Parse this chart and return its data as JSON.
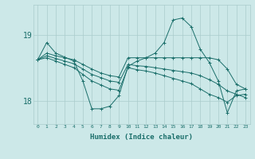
{
  "xlabel": "Humidex (Indice chaleur)",
  "bg_color": "#cce8e8",
  "grid_color": "#aacccc",
  "line_color": "#1a6e6a",
  "xlim": [
    -0.5,
    23.5
  ],
  "ylim": [
    17.65,
    19.45
  ],
  "yticks": [
    18,
    19
  ],
  "xticks": [
    0,
    1,
    2,
    3,
    4,
    5,
    6,
    7,
    8,
    9,
    10,
    11,
    12,
    13,
    14,
    15,
    16,
    17,
    18,
    19,
    20,
    21,
    22,
    23
  ],
  "series": [
    {
      "x": [
        0,
        1,
        2,
        3,
        4,
        5,
        6,
        7,
        8,
        9,
        10,
        11,
        12,
        13,
        14,
        15,
        16,
        17,
        18,
        19,
        20,
        21,
        22,
        23
      ],
      "y": [
        18.62,
        18.88,
        18.72,
        18.66,
        18.6,
        18.3,
        17.88,
        17.88,
        17.92,
        18.08,
        18.52,
        18.6,
        18.65,
        18.72,
        18.88,
        19.22,
        19.25,
        19.12,
        18.78,
        18.58,
        18.3,
        17.82,
        18.15,
        18.18
      ]
    },
    {
      "x": [
        0,
        1,
        2,
        3,
        4,
        5,
        6,
        7,
        8,
        9,
        10,
        11,
        12,
        13,
        14,
        15,
        16,
        17,
        18,
        19,
        20,
        21,
        22,
        23
      ],
      "y": [
        18.62,
        18.72,
        18.68,
        18.65,
        18.62,
        18.55,
        18.48,
        18.42,
        18.38,
        18.36,
        18.65,
        18.65,
        18.65,
        18.65,
        18.65,
        18.65,
        18.65,
        18.65,
        18.65,
        18.65,
        18.62,
        18.48,
        18.25,
        18.18
      ]
    },
    {
      "x": [
        0,
        1,
        2,
        3,
        4,
        5,
        6,
        7,
        8,
        9,
        10,
        11,
        12,
        13,
        14,
        15,
        16,
        17,
        18,
        19,
        20,
        21,
        22,
        23
      ],
      "y": [
        18.62,
        18.68,
        18.64,
        18.6,
        18.56,
        18.48,
        18.4,
        18.35,
        18.3,
        18.28,
        18.55,
        18.53,
        18.52,
        18.5,
        18.48,
        18.46,
        18.44,
        18.42,
        18.38,
        18.32,
        18.25,
        18.15,
        18.1,
        18.05
      ]
    },
    {
      "x": [
        0,
        1,
        2,
        3,
        4,
        5,
        6,
        7,
        8,
        9,
        10,
        11,
        12,
        13,
        14,
        15,
        16,
        17,
        18,
        19,
        20,
        21,
        22,
        23
      ],
      "y": [
        18.62,
        18.65,
        18.6,
        18.55,
        18.5,
        18.4,
        18.3,
        18.24,
        18.18,
        18.16,
        18.5,
        18.47,
        18.45,
        18.42,
        18.38,
        18.34,
        18.3,
        18.26,
        18.18,
        18.1,
        18.05,
        17.98,
        18.08,
        18.1
      ]
    }
  ]
}
